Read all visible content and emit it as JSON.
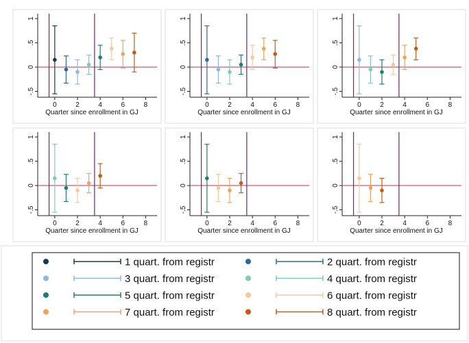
{
  "colors": {
    "s1": "#163a55",
    "s2": "#2b6a99",
    "s3": "#8fb7db",
    "s4": "#7ccbbd",
    "s5": "#1e7f6c",
    "s6": "#f6c7a0",
    "s7": "#f0a260",
    "s8": "#c85a14",
    "vline_enroll": "#8c1d5a",
    "vline_registr": "#7a1d7a",
    "zero_line": "#c0304a",
    "panel_border": "#dddddd",
    "axis": "#222222"
  },
  "legend": {
    "entries": [
      {
        "key": "s1",
        "label": "1 quart. from registr"
      },
      {
        "key": "s2",
        "label": "2 quart. from registr"
      },
      {
        "key": "s3",
        "label": "3 quart. from registr"
      },
      {
        "key": "s4",
        "label": "4 quart. from registr"
      },
      {
        "key": "s5",
        "label": "5 quart. from registr"
      },
      {
        "key": "s6",
        "label": "6 quart. from registr"
      },
      {
        "key": "s7",
        "label": "7 quart. from registr"
      },
      {
        "key": "s8",
        "label": "8 quart. from registr"
      }
    ]
  },
  "chart_data": [
    {
      "type": "scatter",
      "title": "",
      "xlabel": "Quarter since enrollment in GJ",
      "ylabel": "",
      "xlim": [
        -1.5,
        9
      ],
      "ylim": [
        -0.62,
        1.1
      ],
      "xticks": [
        "0",
        "2",
        "4",
        "6",
        "8"
      ],
      "yticks": [
        "-.5",
        "0",
        ".5",
        "1"
      ],
      "hline": 0,
      "vlines": [
        -0.5,
        3.5
      ],
      "points": [
        {
          "series": "s1",
          "x": 0,
          "y": 0.15,
          "lo": -0.55,
          "hi": 0.85
        },
        {
          "series": "s2",
          "x": 1,
          "y": -0.05,
          "lo": -0.33,
          "hi": 0.23
        },
        {
          "series": "s3",
          "x": 2,
          "y": -0.1,
          "lo": -0.35,
          "hi": 0.15
        },
        {
          "series": "s4",
          "x": 3,
          "y": 0.05,
          "lo": -0.15,
          "hi": 0.25
        },
        {
          "series": "s5",
          "x": 4,
          "y": 0.2,
          "lo": -0.05,
          "hi": 0.45
        },
        {
          "series": "s6",
          "x": 5,
          "y": 0.38,
          "lo": 0.15,
          "hi": 0.6
        },
        {
          "series": "s7",
          "x": 6,
          "y": 0.27,
          "lo": -0.02,
          "hi": 0.55
        },
        {
          "series": "s8",
          "x": 7,
          "y": 0.3,
          "lo": -0.1,
          "hi": 0.7
        }
      ]
    },
    {
      "type": "scatter",
      "title": "",
      "xlabel": "Quarter since enrollment in GJ",
      "ylabel": "",
      "xlim": [
        -1.5,
        9
      ],
      "ylim": [
        -0.62,
        1.1
      ],
      "xticks": [
        "0",
        "2",
        "4",
        "6",
        "8"
      ],
      "yticks": [
        "-.5",
        "0",
        ".5",
        "1"
      ],
      "hline": 0,
      "vlines": [
        -0.5,
        3.5
      ],
      "points": [
        {
          "series": "s2",
          "x": 0,
          "y": 0.15,
          "lo": -0.55,
          "hi": 0.85
        },
        {
          "series": "s3",
          "x": 1,
          "y": -0.05,
          "lo": -0.33,
          "hi": 0.23
        },
        {
          "series": "s4",
          "x": 2,
          "y": -0.1,
          "lo": -0.35,
          "hi": 0.15
        },
        {
          "series": "s5",
          "x": 3,
          "y": 0.05,
          "lo": -0.15,
          "hi": 0.25
        },
        {
          "series": "s6",
          "x": 4,
          "y": 0.2,
          "lo": -0.05,
          "hi": 0.45
        },
        {
          "series": "s7",
          "x": 5,
          "y": 0.38,
          "lo": 0.15,
          "hi": 0.6
        },
        {
          "series": "s8",
          "x": 6,
          "y": 0.27,
          "lo": -0.02,
          "hi": 0.55
        }
      ]
    },
    {
      "type": "scatter",
      "title": "",
      "xlabel": "Quarter since enrollment in GJ",
      "ylabel": "",
      "xlim": [
        -1.5,
        9
      ],
      "ylim": [
        -0.62,
        1.1
      ],
      "xticks": [
        "0",
        "2",
        "4",
        "6",
        "8"
      ],
      "yticks": [
        "-.5",
        "0",
        ".5",
        "1"
      ],
      "hline": 0,
      "vlines": [
        -0.5,
        3.5
      ],
      "points": [
        {
          "series": "s3",
          "x": 0,
          "y": 0.15,
          "lo": -0.55,
          "hi": 0.85
        },
        {
          "series": "s4",
          "x": 1,
          "y": -0.05,
          "lo": -0.33,
          "hi": 0.23
        },
        {
          "series": "s5",
          "x": 2,
          "y": -0.1,
          "lo": -0.35,
          "hi": 0.15
        },
        {
          "series": "s6",
          "x": 3,
          "y": 0.05,
          "lo": -0.15,
          "hi": 0.25
        },
        {
          "series": "s7",
          "x": 4,
          "y": 0.2,
          "lo": -0.05,
          "hi": 0.45
        },
        {
          "series": "s8",
          "x": 5,
          "y": 0.38,
          "lo": 0.15,
          "hi": 0.6
        }
      ]
    },
    {
      "type": "scatter",
      "title": "",
      "xlabel": "Quarter since enrollment in GJ",
      "ylabel": "",
      "xlim": [
        -1.5,
        9
      ],
      "ylim": [
        -0.62,
        1.1
      ],
      "xticks": [
        "0",
        "2",
        "4",
        "6",
        "8"
      ],
      "yticks": [
        "-.5",
        "0",
        ".5",
        "1"
      ],
      "hline": 0,
      "vlines": [
        -0.5,
        3.5
      ],
      "points": [
        {
          "series": "s4",
          "x": 0,
          "y": 0.15,
          "lo": -0.55,
          "hi": 0.85
        },
        {
          "series": "s5",
          "x": 1,
          "y": -0.05,
          "lo": -0.33,
          "hi": 0.23
        },
        {
          "series": "s6",
          "x": 2,
          "y": -0.1,
          "lo": -0.35,
          "hi": 0.15
        },
        {
          "series": "s7",
          "x": 3,
          "y": 0.05,
          "lo": -0.15,
          "hi": 0.25
        },
        {
          "series": "s8",
          "x": 4,
          "y": 0.2,
          "lo": -0.05,
          "hi": 0.45
        }
      ]
    },
    {
      "type": "scatter",
      "title": "",
      "xlabel": "Quarter since enrollment in GJ",
      "ylabel": "",
      "xlim": [
        -1.5,
        9
      ],
      "ylim": [
        -0.62,
        1.1
      ],
      "xticks": [
        "0",
        "2",
        "4",
        "6",
        "8"
      ],
      "yticks": [
        "-.5",
        "0",
        ".5",
        "1"
      ],
      "hline": 0,
      "vlines": [
        -0.5,
        3.5
      ],
      "points": [
        {
          "series": "s5",
          "x": 0,
          "y": 0.15,
          "lo": -0.55,
          "hi": 0.85
        },
        {
          "series": "s6",
          "x": 1,
          "y": -0.05,
          "lo": -0.33,
          "hi": 0.23
        },
        {
          "series": "s7",
          "x": 2,
          "y": -0.1,
          "lo": -0.35,
          "hi": 0.15
        },
        {
          "series": "s8",
          "x": 3,
          "y": 0.05,
          "lo": -0.15,
          "hi": 0.25
        }
      ]
    },
    {
      "type": "scatter",
      "title": "",
      "xlabel": "Quarter since enrollment in GJ",
      "ylabel": "",
      "xlim": [
        -1.5,
        9
      ],
      "ylim": [
        -0.62,
        1.1
      ],
      "xticks": [
        "0",
        "2",
        "4",
        "6",
        "8"
      ],
      "yticks": [
        "-.5",
        "0",
        ".5",
        "1"
      ],
      "hline": 0,
      "vlines": [
        -0.5,
        3.5
      ],
      "points": [
        {
          "series": "s6",
          "x": 0,
          "y": 0.15,
          "lo": -0.55,
          "hi": 0.85
        },
        {
          "series": "s7",
          "x": 1,
          "y": -0.05,
          "lo": -0.33,
          "hi": 0.23
        },
        {
          "series": "s8",
          "x": 2,
          "y": -0.1,
          "lo": -0.35,
          "hi": 0.15
        }
      ]
    }
  ]
}
